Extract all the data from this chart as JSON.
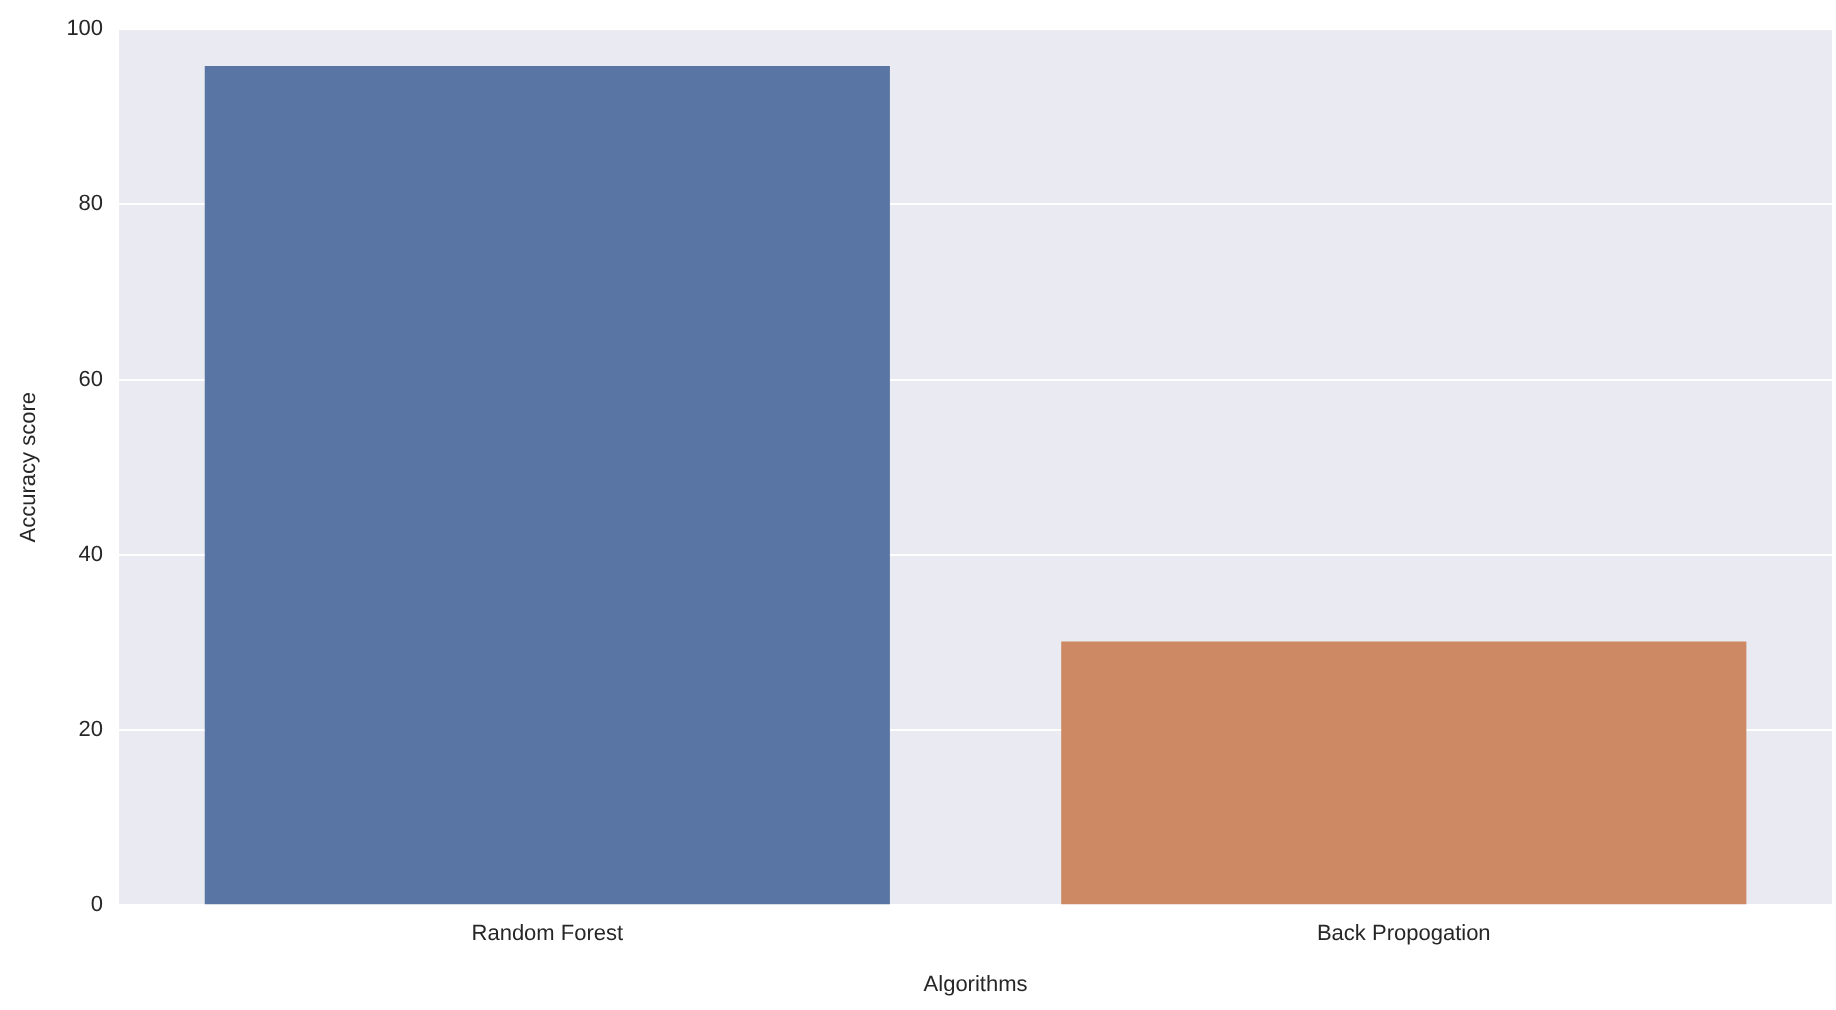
{
  "chart_data": {
    "type": "bar",
    "xlabel": "Algorithms",
    "ylabel": "Accuracy score",
    "categories": [
      "Random Forest",
      "Back Propogation"
    ],
    "values": [
      95.8,
      30.1
    ],
    "colors": [
      "#5975a4",
      "#cc8963"
    ],
    "ylim": [
      0,
      100
    ],
    "yticks": [
      0,
      20,
      40,
      60,
      80,
      100
    ],
    "grid": "y",
    "legend": false
  }
}
